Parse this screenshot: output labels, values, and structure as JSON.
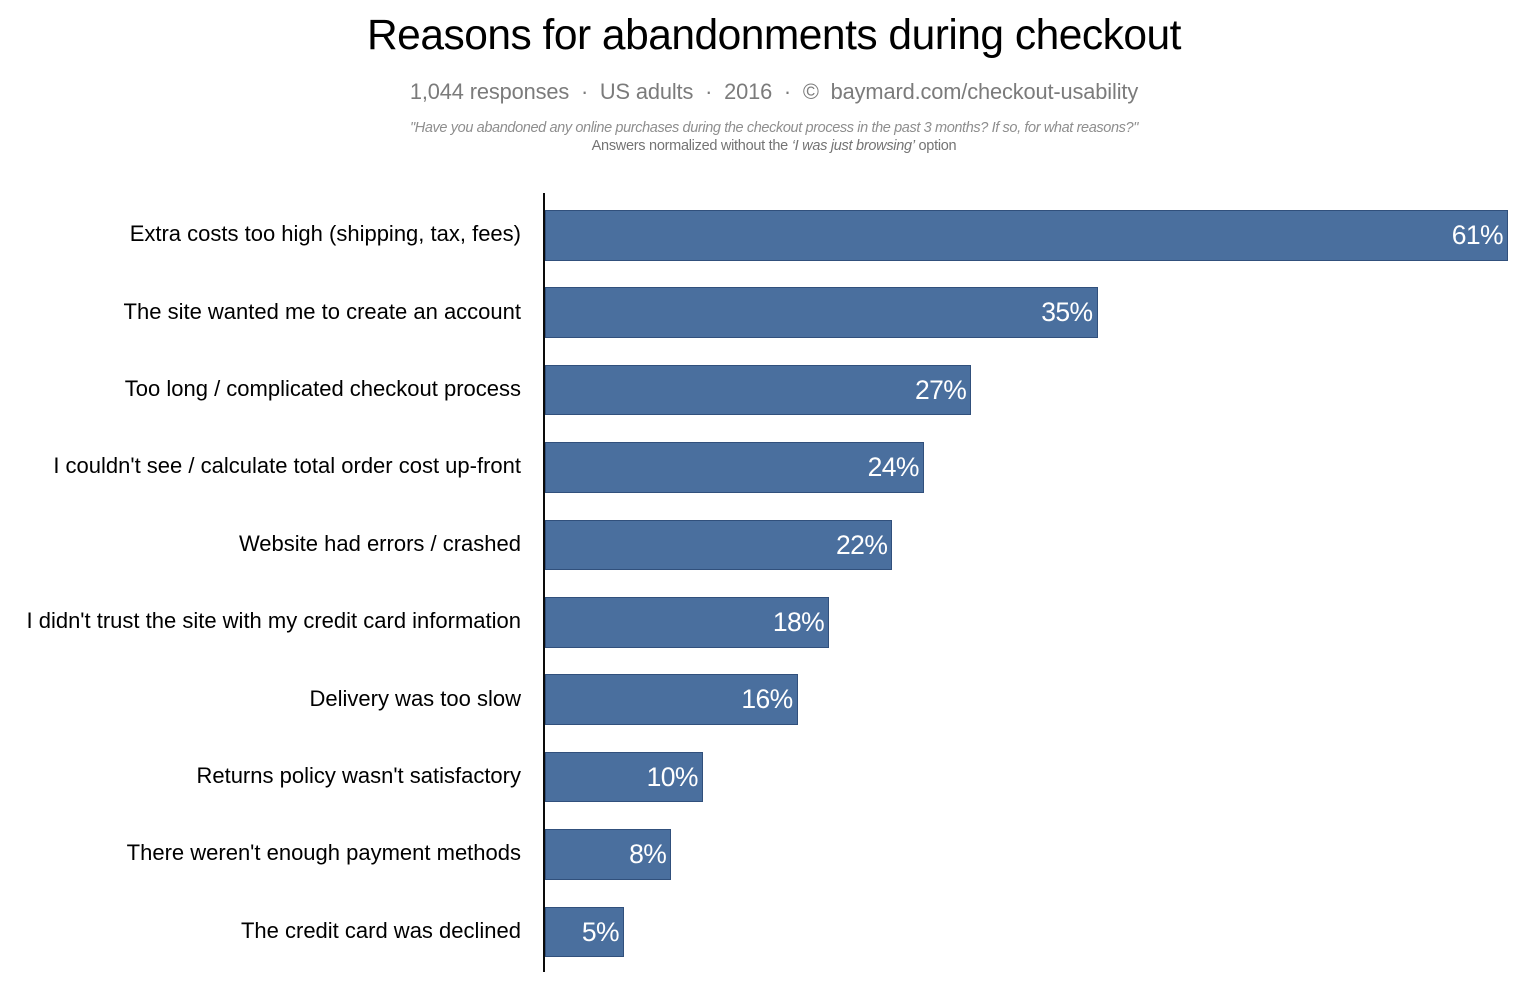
{
  "header": {
    "title": "Reasons for abandonments during checkout",
    "subtitle": "1,044 responses  ·  US adults  ·  2016  ·  ©  baymard.com/checkout-usability",
    "note_line1": "\"Have you abandoned any online purchases during the checkout process in the past 3 months? If so, for what reasons?\"",
    "note_line2_prefix": "Answers normalized without the ",
    "note_line2_italic": "‘I was just browsing’",
    "note_line2_suffix": " option"
  },
  "chart_data": {
    "type": "bar",
    "orientation": "horizontal",
    "title": "Reasons for abandonments during checkout",
    "subtitle": "1,044 responses · US adults · 2016 · © baymard.com/checkout-usability",
    "categories": [
      "Extra costs too high (shipping, tax, fees)",
      "The site wanted me to create an account",
      "Too long / complicated checkout process",
      "I couldn't see / calculate total order cost up-front",
      "Website had errors / crashed",
      "I didn't trust the site with my credit card information",
      "Delivery was too slow",
      "Returns policy wasn't satisfactory",
      "There weren't enough payment methods",
      "The credit card was declined"
    ],
    "values": [
      61,
      35,
      27,
      24,
      22,
      18,
      16,
      10,
      8,
      5
    ],
    "value_suffix": "%",
    "annotations": [
      "\"Have you abandoned any online purchases during the checkout process in the past 3 months? If so, for what reasons?\"",
      "Answers normalized without the ‘I was just browsing’ option"
    ],
    "xlim": [
      0,
      61
    ],
    "grid": false,
    "legend": false,
    "bar_color": "#4a6f9e",
    "bar_border_color": "#31507c",
    "axis_color": "#0a0a0a",
    "value_label_color": "#ffffff",
    "category_label_color": "#000000",
    "background_color": "#ffffff"
  }
}
